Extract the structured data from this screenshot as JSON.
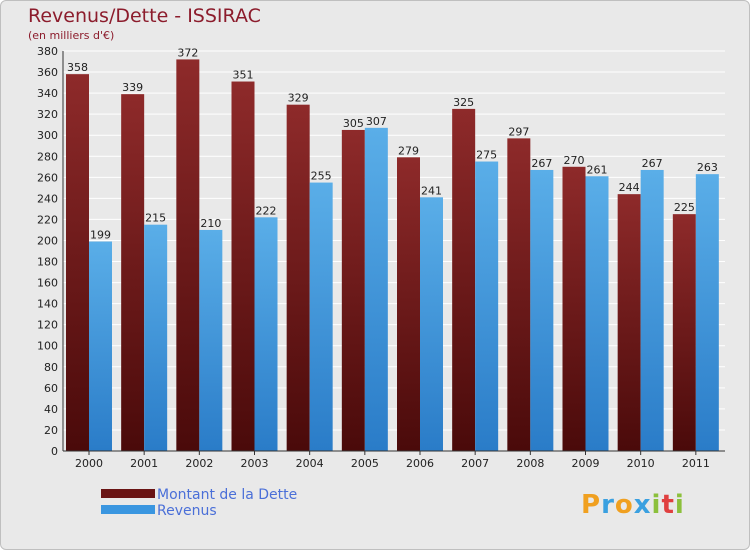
{
  "chart_data": {
    "type": "bar",
    "title": "Revenus/Dette - ISSIRAC",
    "subtitle": "(en milliers d'€)",
    "categories": [
      "2000",
      "2001",
      "2002",
      "2003",
      "2004",
      "2005",
      "2006",
      "2007",
      "2008",
      "2009",
      "2010",
      "2011"
    ],
    "series": [
      {
        "name": "Montant de la Dette",
        "color": "#7a1c1c",
        "values": [
          358,
          339,
          372,
          351,
          329,
          305,
          279,
          325,
          297,
          270,
          244,
          225
        ]
      },
      {
        "name": "Revenus",
        "color": "#3a96e0",
        "values": [
          199,
          215,
          210,
          222,
          255,
          307,
          241,
          275,
          267,
          261,
          267,
          263
        ]
      }
    ],
    "ylim": [
      0,
      380
    ],
    "yticks": [
      0,
      20,
      40,
      60,
      80,
      100,
      120,
      140,
      160,
      180,
      200,
      220,
      240,
      260,
      280,
      300,
      320,
      340,
      360,
      380
    ],
    "grid": true,
    "legend_position": "bottom-left"
  },
  "logo": {
    "letters": [
      "P",
      "r",
      "o",
      "x",
      "i",
      "t",
      "i"
    ],
    "colors": [
      "#f0a020",
      "#3aa0e0",
      "#f0a020",
      "#3aa0e0",
      "#8cc03c",
      "#e04040",
      "#8cc03c"
    ]
  }
}
